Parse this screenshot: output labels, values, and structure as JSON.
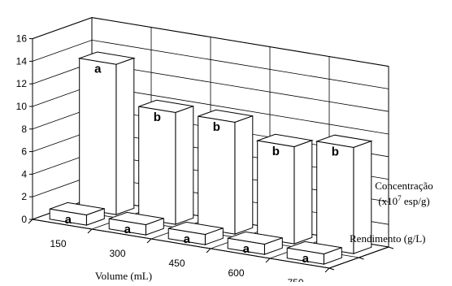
{
  "chart_data": {
    "type": "bar",
    "subtype": "3d-bar-grid",
    "categories": [
      "150",
      "300",
      "450",
      "600",
      "750"
    ],
    "series": [
      {
        "name": "Rendimento (g/L)",
        "values": [
          0.9,
          0.9,
          0.9,
          0.9,
          0.9
        ],
        "labels": [
          "a",
          "a",
          "a",
          "a",
          "a"
        ]
      },
      {
        "name": "Concentração (x10^7 esp/g)",
        "values": [
          13.3,
          9.9,
          9.9,
          8.6,
          9.4
        ],
        "labels": [
          "a",
          "b",
          "b",
          "b",
          "b"
        ]
      }
    ],
    "xlabel": "Volume (mL)",
    "ylabel": "",
    "yticks": [
      "0",
      "2",
      "4",
      "6",
      "8",
      "10",
      "12",
      "14",
      "16"
    ],
    "ylim": [
      0,
      16
    ],
    "grid": true,
    "series_labels_placement": "right-depth-axis"
  }
}
